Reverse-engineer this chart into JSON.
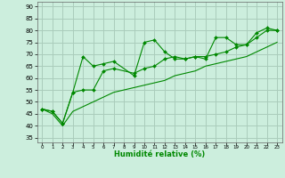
{
  "xlabel": "Humidité relative (%)",
  "background_color": "#cceedd",
  "grid_color": "#aaccbb",
  "line_color": "#008800",
  "xlim": [
    -0.5,
    23.5
  ],
  "ylim": [
    33,
    92
  ],
  "yticks": [
    35,
    40,
    45,
    50,
    55,
    60,
    65,
    70,
    75,
    80,
    85,
    90
  ],
  "xticks": [
    0,
    1,
    2,
    3,
    4,
    5,
    6,
    7,
    8,
    9,
    10,
    11,
    12,
    13,
    14,
    15,
    16,
    17,
    18,
    19,
    20,
    21,
    22,
    23
  ],
  "line1": [
    47,
    46,
    41,
    54,
    69,
    65,
    66,
    67,
    null,
    61,
    75,
    76,
    71,
    68,
    68,
    69,
    68,
    77,
    77,
    74,
    74,
    79,
    81,
    80
  ],
  "line2": [
    47,
    46,
    41,
    54,
    55,
    55,
    63,
    64,
    null,
    62,
    64,
    65,
    68,
    69,
    68,
    69,
    69,
    70,
    71,
    73,
    74,
    77,
    80,
    80
  ],
  "line3": [
    47,
    45,
    40,
    46,
    48,
    50,
    52,
    54,
    55,
    56,
    57,
    58,
    59,
    61,
    62,
    63,
    65,
    66,
    67,
    68,
    69,
    71,
    73,
    75
  ]
}
